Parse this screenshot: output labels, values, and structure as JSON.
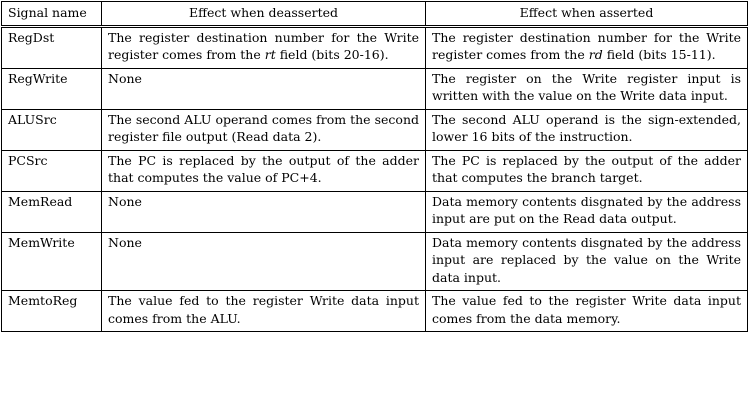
{
  "table": {
    "headers": [
      "Signal name",
      "Effect when deasserted",
      "Effect when asserted"
    ],
    "rows": [
      {
        "name": "RegDst",
        "deasserted": [
          "The register destination number for the Write register comes from the ",
          "rt",
          " field (bits 20-16)."
        ],
        "asserted": [
          "The register destination number for the Write register comes from the ",
          "rd",
          " field (bits 15-11)."
        ]
      },
      {
        "name": "RegWrite",
        "deasserted": [
          "None"
        ],
        "asserted": [
          "The register on the Write register input is written with the value on the Write data input."
        ]
      },
      {
        "name": "ALUSrc",
        "deasserted": [
          "The second ALU operand comes from the second register file output (Read data 2)."
        ],
        "asserted": [
          "The second ALU operand is the sign-extended, lower 16 bits of the instruction."
        ]
      },
      {
        "name": "PCSrc",
        "deasserted": [
          "The PC is replaced by the output of the adder that computes the value of PC+4."
        ],
        "asserted": [
          "The PC is replaced by the output of the adder that computes the branch target."
        ]
      },
      {
        "name": "MemRead",
        "deasserted": [
          "None"
        ],
        "asserted": [
          "Data memory contents disgnated by the address input are put on the Read data output."
        ]
      },
      {
        "name": "MemWrite",
        "deasserted": [
          "None"
        ],
        "asserted": [
          "Data memory contents disgnated by the address input are replaced by the value on the Write data input."
        ]
      },
      {
        "name": "MemtoReg",
        "deasserted": [
          "The value fed to the register Write data input comes from the ALU."
        ],
        "asserted": [
          "The value fed to the register Write data input comes from the data memory."
        ]
      }
    ]
  }
}
